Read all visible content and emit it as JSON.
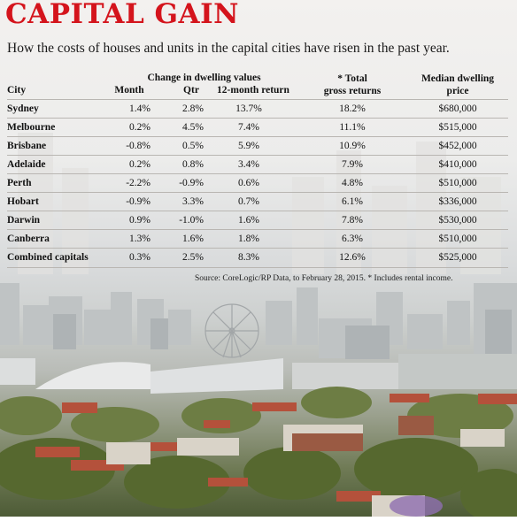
{
  "title": "CAPITAL GAIN",
  "subtitle": "How the costs of houses and units in the capital cities have risen in the past year.",
  "table": {
    "group_header": "Change in dwelling values",
    "headers": {
      "city": "City",
      "month": "Month",
      "qtr": "Qtr",
      "return": "12-month return",
      "gross_line1": "* Total",
      "gross_line2": "gross returns",
      "price_line1": "Median dwelling",
      "price_line2": "price"
    },
    "rows": [
      {
        "city": "Sydney",
        "month": "1.4%",
        "qtr": "2.8%",
        "return": "13.7%",
        "gross": "18.2%",
        "price": "$680,000"
      },
      {
        "city": "Melbourne",
        "month": "0.2%",
        "qtr": "4.5%",
        "return": "7.4%",
        "gross": "11.1%",
        "price": "$515,000"
      },
      {
        "city": "Brisbane",
        "month": "-0.8%",
        "qtr": "0.5%",
        "return": "5.9%",
        "gross": "10.9%",
        "price": "$452,000"
      },
      {
        "city": "Adelaide",
        "month": "0.2%",
        "qtr": "0.8%",
        "return": "3.4%",
        "gross": "7.9%",
        "price": "$410,000"
      },
      {
        "city": "Perth",
        "month": "-2.2%",
        "qtr": "-0.9%",
        "return": "0.6%",
        "gross": "4.8%",
        "price": "$510,000"
      },
      {
        "city": "Hobart",
        "month": "-0.9%",
        "qtr": "3.3%",
        "return": "0.7%",
        "gross": "6.1%",
        "price": "$336,000"
      },
      {
        "city": "Darwin",
        "month": "0.9%",
        "qtr": "-1.0%",
        "return": "1.6%",
        "gross": "7.8%",
        "price": "$530,000"
      },
      {
        "city": "Canberra",
        "month": "1.3%",
        "qtr": "1.6%",
        "return": "1.8%",
        "gross": "6.3%",
        "price": "$510,000"
      },
      {
        "city": "Combined capitals",
        "month": "0.3%",
        "qtr": "2.5%",
        "return": "8.3%",
        "gross": "12.6%",
        "price": "$525,000"
      }
    ],
    "source": "Source: CoreLogic/RP Data, to February 28, 2015. * Includes rental income."
  },
  "colors": {
    "title": "#d4141c",
    "text": "#111111",
    "rule": "#b9b6b2"
  }
}
